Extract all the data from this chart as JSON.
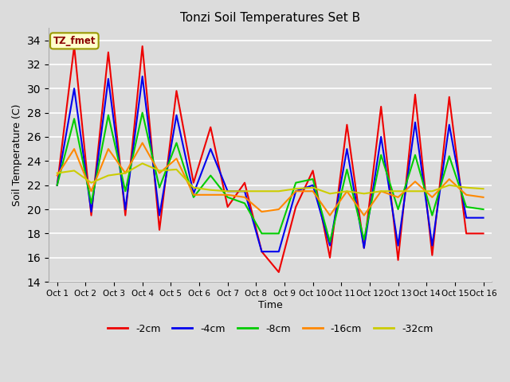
{
  "title": "Tonzi Soil Temperatures Set B",
  "xlabel": "Time",
  "ylabel": "Soil Temperature (C)",
  "ylim": [
    14,
    35
  ],
  "yticks": [
    14,
    16,
    18,
    20,
    22,
    24,
    26,
    28,
    30,
    32,
    34
  ],
  "x_labels": [
    "Oct 1",
    "Oct 2",
    "Oct 3",
    "Oct 4",
    "Oct 5",
    "Oct 6",
    "Oct 7",
    "Oct 8",
    "Oct 9",
    "Oct 10",
    "Oct 11",
    "Oct 12",
    "Oct 13",
    "Oct 14",
    "Oct 15",
    "Oct 16"
  ],
  "annotation_text": "TZ_fmet",
  "background_color": "#dcdcdc",
  "fig_facecolor": "#dcdcdc",
  "series": [
    {
      "label": "-2cm",
      "color": "#ee0000",
      "linewidth": 1.5,
      "values": [
        22.0,
        33.5,
        19.5,
        33.0,
        19.5,
        33.5,
        18.3,
        29.8,
        22.2,
        26.8,
        20.2,
        22.2,
        16.5,
        14.8,
        20.2,
        23.2,
        16.0,
        27.0,
        16.8,
        28.5,
        15.8,
        29.5,
        16.2,
        29.3,
        18.0,
        18.0
      ]
    },
    {
      "label": "-4cm",
      "color": "#0000ee",
      "linewidth": 1.5,
      "values": [
        22.0,
        30.0,
        19.8,
        30.8,
        20.0,
        31.0,
        19.5,
        27.8,
        21.3,
        25.0,
        21.5,
        21.5,
        16.5,
        16.5,
        21.5,
        22.0,
        17.0,
        25.0,
        16.8,
        26.0,
        17.0,
        27.2,
        17.0,
        27.0,
        19.3,
        19.3
      ]
    },
    {
      "label": "-8cm",
      "color": "#00cc00",
      "linewidth": 1.5,
      "values": [
        22.0,
        27.5,
        20.5,
        27.8,
        21.5,
        28.0,
        21.8,
        25.5,
        21.0,
        22.8,
        21.0,
        20.5,
        18.0,
        18.0,
        22.2,
        22.5,
        17.3,
        23.3,
        17.5,
        24.5,
        20.0,
        24.5,
        19.5,
        24.4,
        20.2,
        20.0
      ]
    },
    {
      "label": "-16cm",
      "color": "#ff8800",
      "linewidth": 1.5,
      "values": [
        22.8,
        25.0,
        21.5,
        25.0,
        23.0,
        25.5,
        23.0,
        24.2,
        21.2,
        21.2,
        21.2,
        21.0,
        19.8,
        20.0,
        21.5,
        21.5,
        19.5,
        21.5,
        19.5,
        21.5,
        21.0,
        22.3,
        21.0,
        22.5,
        21.2,
        21.0
      ]
    },
    {
      "label": "-32cm",
      "color": "#cccc00",
      "linewidth": 1.5,
      "values": [
        23.0,
        23.2,
        22.2,
        22.8,
        23.0,
        23.8,
        23.2,
        23.3,
        21.8,
        21.6,
        21.5,
        21.5,
        21.5,
        21.5,
        21.7,
        21.8,
        21.3,
        21.5,
        21.3,
        21.5,
        21.5,
        21.5,
        21.5,
        22.0,
        21.8,
        21.7
      ]
    }
  ]
}
